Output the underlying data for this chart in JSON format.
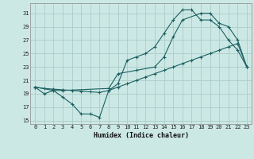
{
  "xlabel": "Humidex (Indice chaleur)",
  "bg_color": "#cce8e5",
  "grid_color": "#aaccca",
  "line_color": "#1a6060",
  "xlim": [
    -0.5,
    23.5
  ],
  "ylim": [
    14.5,
    32.5
  ],
  "yticks": [
    15,
    17,
    19,
    21,
    23,
    25,
    27,
    29,
    31
  ],
  "xticks": [
    0,
    1,
    2,
    3,
    4,
    5,
    6,
    7,
    8,
    9,
    10,
    11,
    12,
    13,
    14,
    15,
    16,
    17,
    18,
    19,
    20,
    21,
    22,
    23
  ],
  "line1_x": [
    0,
    1,
    2,
    3,
    4,
    5,
    6,
    7,
    8,
    9,
    10,
    11,
    12,
    13,
    14,
    15,
    16,
    17,
    18,
    19,
    20,
    21,
    22,
    23
  ],
  "line1_y": [
    20,
    19,
    19.5,
    18.5,
    17.5,
    16,
    16,
    15.5,
    19.5,
    20.5,
    24,
    24.5,
    25,
    26,
    28,
    30,
    31.5,
    31.5,
    30,
    30,
    29,
    27,
    25.5,
    23
  ],
  "line2_x": [
    0,
    1,
    2,
    3,
    4,
    5,
    6,
    7,
    8,
    9,
    10,
    11,
    12,
    13,
    14,
    15,
    16,
    17,
    18,
    19,
    20,
    21,
    22,
    23
  ],
  "line2_y": [
    20,
    19.8,
    19.7,
    19.6,
    19.5,
    19.4,
    19.3,
    19.2,
    19.5,
    20,
    20.5,
    21,
    21.5,
    22,
    22.5,
    23,
    23.5,
    24,
    24.5,
    25,
    25.5,
    26,
    26.5,
    23
  ],
  "line3_x": [
    0,
    2,
    3,
    8,
    9,
    11,
    13,
    14,
    15,
    16,
    18,
    19,
    20,
    21,
    22,
    23
  ],
  "line3_y": [
    20,
    19.5,
    19.5,
    19.8,
    22,
    22.5,
    23,
    24.5,
    27.5,
    30,
    31,
    31,
    29.5,
    29,
    27,
    23
  ]
}
